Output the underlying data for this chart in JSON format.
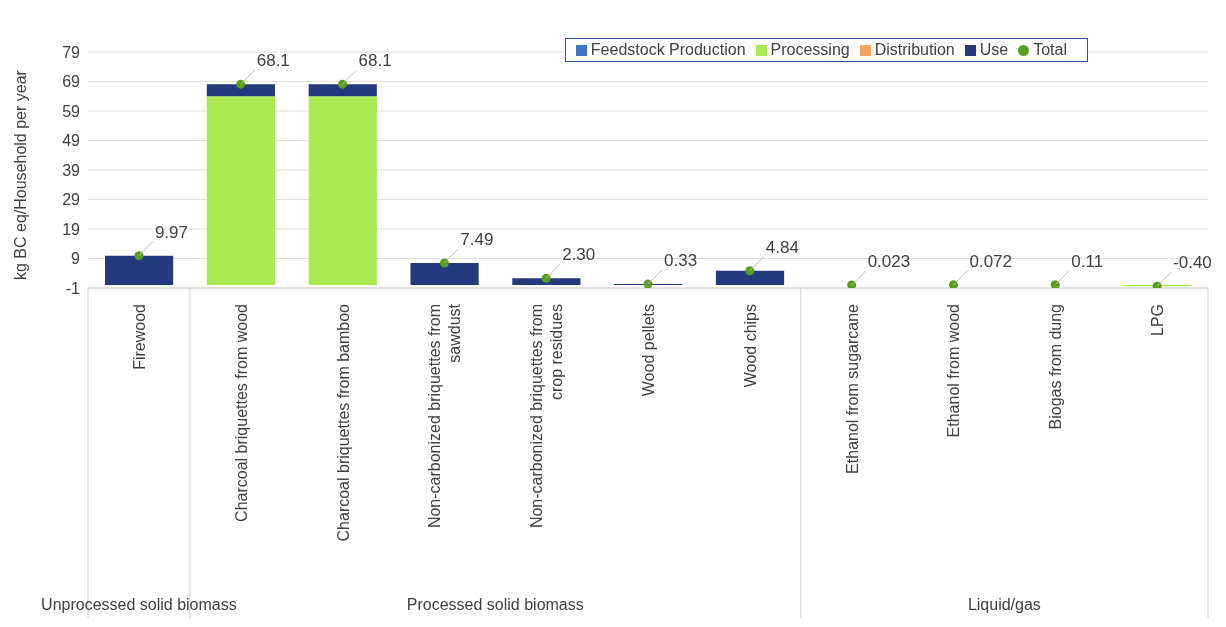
{
  "chart_data": {
    "type": "bar",
    "stacked": true,
    "ylabel": "kg BC eq/Household per year",
    "categories": [
      "Firewood",
      "Charcoal briquettes from wood",
      "Charcoal briquettes from bamboo",
      "Non-carbonized briquettes from sawdust",
      "Non-carbonized briquettes from crop residues",
      "Wood pellets",
      "Wood chips",
      "Ethanol from sugarcane",
      "Ethanol from wood",
      "Biogas from dung",
      "LPG"
    ],
    "series": [
      {
        "name": "Feedstock Production",
        "color": "#4472c4",
        "values": [
          null,
          null,
          null,
          null,
          null,
          null,
          null,
          null,
          null,
          null,
          null
        ]
      },
      {
        "name": "Processing",
        "color": "#a9ea52",
        "values": [
          null,
          64.0,
          64.0,
          null,
          null,
          null,
          null,
          null,
          null,
          null,
          -0.4
        ]
      },
      {
        "name": "Distribution",
        "color": "#f4a460",
        "values": [
          null,
          null,
          null,
          null,
          null,
          null,
          null,
          0.023,
          null,
          null,
          null
        ]
      },
      {
        "name": "Use",
        "color": "#253a7e",
        "values": [
          9.97,
          4.1,
          4.1,
          7.49,
          2.3,
          0.33,
          4.84,
          null,
          null,
          null,
          null
        ]
      },
      {
        "name": "Total",
        "type": "scatter",
        "color": "#5a9e1e",
        "values": [
          9.97,
          68.1,
          68.1,
          7.49,
          2.3,
          0.33,
          4.84,
          0.023,
          0.072,
          0.11,
          -0.4
        ],
        "value_labels": [
          "9.97",
          "68.1",
          "68.1",
          "7.49",
          "2.30",
          "0.33",
          "4.84",
          "0.023",
          "0.072",
          "0.11",
          "-0.40"
        ]
      }
    ],
    "ylim": [
      -1,
      79
    ],
    "yticks": [
      -1,
      9,
      19,
      29,
      39,
      49,
      59,
      69,
      79
    ],
    "grid": "y",
    "legend": "top right",
    "annotations": [
      "Unprocessed solid biomass",
      "Processed solid biomass",
      "Liquid/gas"
    ]
  }
}
